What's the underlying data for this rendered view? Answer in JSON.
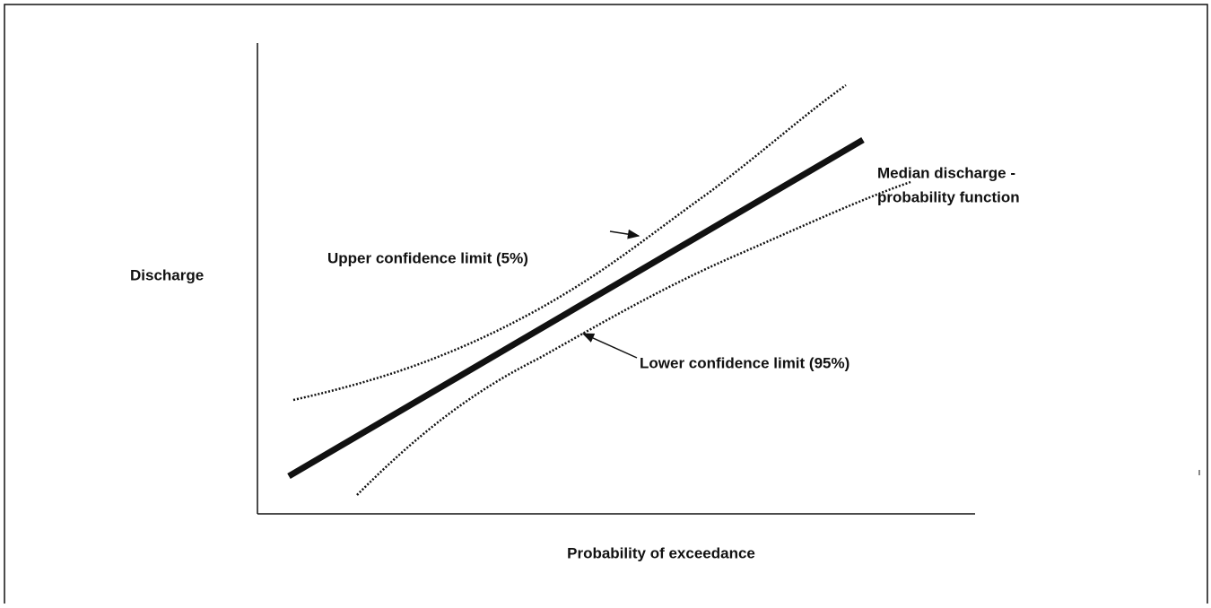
{
  "labels": {
    "y_axis": "Discharge",
    "x_axis": "Probability of exceedance",
    "median_line_1": "Median discharge -",
    "median_line_2": "probability function",
    "upper": "Upper confidence limit (5%)",
    "lower": "Lower confidence limit (95%)"
  }
}
